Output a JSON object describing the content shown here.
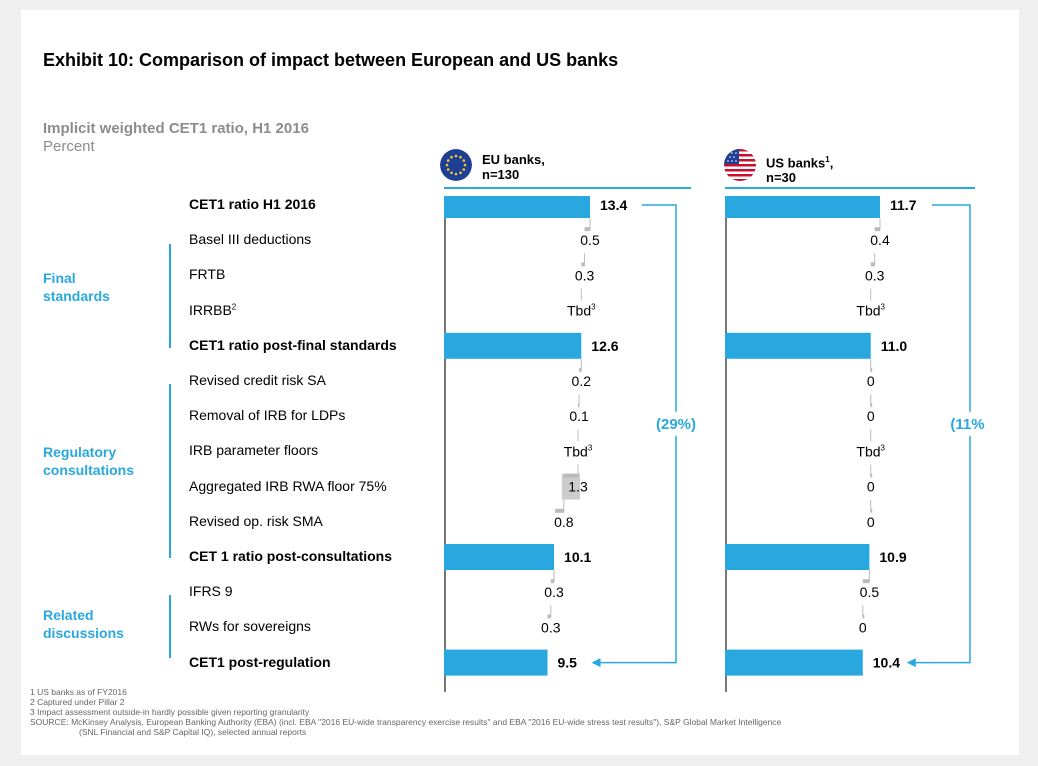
{
  "header": {
    "title": "Exhibit 10: Comparison of impact between European and US banks",
    "subtitle": "Implicit weighted CET1 ratio, H1 2016",
    "unit": "Percent"
  },
  "panels": [
    {
      "label_line1": "EU banks,",
      "label_line2": "n=130",
      "flag_icon": "eu-flag-icon",
      "change_label": "(29%)"
    },
    {
      "label_line1": "US banks",
      "label_sup": "1",
      "label_suffix": ",",
      "label_line2": "n=30",
      "flag_icon": "us-flag-icon",
      "change_label": "(11%)"
    }
  ],
  "rows": [
    {
      "label": "CET1 ratio H1 2016",
      "bold": true
    },
    {
      "label": "Basel III deductions",
      "bold": false
    },
    {
      "label": "FRTB",
      "bold": false
    },
    {
      "label": "IRRBB",
      "sup": "2",
      "bold": false
    },
    {
      "label": "CET1 ratio post-final standards",
      "bold": true
    },
    {
      "label": "Revised credit risk SA",
      "bold": false
    },
    {
      "label": "Removal of IRB for LDPs",
      "bold": false
    },
    {
      "label": "IRB parameter floors",
      "bold": false
    },
    {
      "label": "Aggregated IRB RWA floor 75%",
      "bold": false
    },
    {
      "label": "Revised op. risk SMA",
      "bold": false
    },
    {
      "label": "CET 1 ratio post-consultations",
      "bold": true
    },
    {
      "label": "IFRS 9",
      "bold": false
    },
    {
      "label": "RWs for sovereigns",
      "bold": false
    },
    {
      "label": "CET1 post-regulation",
      "bold": true
    }
  ],
  "groups": [
    {
      "label_line1": "Final",
      "label_line2": "standards"
    },
    {
      "label_line1": "Regulatory",
      "label_line2": "consultations"
    },
    {
      "label_line1": "Related",
      "label_line2": "discussions"
    }
  ],
  "footnotes": [
    "1 US banks as of FY2016",
    "2 Captured under Pillar 2",
    "3 Impact assessment outside-in hardly possible given reporting granularity",
    "SOURCE: McKinsey Analysis, European Banking Authority (EBA) (incl. EBA \"2016 EU-wide transparency exercise results\" and EBA \"2016 EU-wide stress test results\"), S&P Global Market Intelligence",
    "(SNL Financial and S&P Capital IQ), selected annual reports"
  ],
  "colors": {
    "bar": "#29a8e0",
    "highlight": "#cccccc",
    "connector": "#bbbbbb",
    "accent": "#29a8e0"
  },
  "chart_data": [
    {
      "type": "bar",
      "title": "EU banks, n=130",
      "categories": [
        "CET1 ratio H1 2016",
        "Basel III deductions",
        "FRTB",
        "IRRBB",
        "CET1 ratio post-final standards",
        "Revised credit risk SA",
        "Removal of IRB for LDPs",
        "IRB parameter floors",
        "Aggregated IRB RWA floor 75%",
        "Revised op. risk SMA",
        "CET 1 ratio post-consultations",
        "IFRS 9",
        "RWs for sovereigns",
        "CET1 post-regulation"
      ],
      "values": [
        13.4,
        0.5,
        0.3,
        null,
        12.6,
        0.2,
        0.1,
        null,
        1.3,
        0.8,
        10.1,
        0.3,
        0.3,
        9.5
      ],
      "labels": [
        "13.4",
        "0.5",
        "0.3",
        "Tbd",
        "12.6",
        "0.2",
        "0.1",
        "Tbd",
        "1.3",
        "0.8",
        "10.1",
        "0.3",
        "0.3",
        "9.5"
      ],
      "label_sups": [
        "",
        "",
        "",
        "3",
        "",
        "",
        "",
        "3",
        "",
        "",
        "",
        "",
        "",
        ""
      ],
      "totals": [
        true,
        false,
        false,
        false,
        true,
        false,
        false,
        false,
        false,
        false,
        true,
        false,
        false,
        true
      ],
      "highlighted": [
        false,
        false,
        false,
        false,
        false,
        false,
        false,
        false,
        true,
        false,
        false,
        false,
        false,
        false
      ],
      "xlim": [
        0,
        13.4
      ],
      "change": "(29%)"
    },
    {
      "type": "bar",
      "title": "US banks, n=30",
      "categories": [
        "CET1 ratio H1 2016",
        "Basel III deductions",
        "FRTB",
        "IRRBB",
        "CET1 ratio post-final standards",
        "Revised credit risk SA",
        "Removal of IRB for LDPs",
        "IRB parameter floors",
        "Aggregated IRB RWA floor 75%",
        "Revised op. risk SMA",
        "CET 1 ratio post-consultations",
        "IFRS 9",
        "RWs for sovereigns",
        "CET1 post-regulation"
      ],
      "values": [
        11.7,
        0.4,
        0.3,
        null,
        11.0,
        0,
        0,
        null,
        0,
        0,
        10.9,
        0.5,
        0,
        10.4
      ],
      "labels": [
        "11.7",
        "0.4",
        "0.3",
        "Tbd",
        "11.0",
        "0",
        "0",
        "Tbd",
        "0",
        "0",
        "10.9",
        "0.5",
        "0",
        "10.4"
      ],
      "label_sups": [
        "",
        "",
        "",
        "3",
        "",
        "",
        "",
        "3",
        "",
        "",
        "",
        "",
        "",
        ""
      ],
      "totals": [
        true,
        false,
        false,
        false,
        true,
        false,
        false,
        false,
        false,
        false,
        true,
        false,
        false,
        true
      ],
      "highlighted": [
        false,
        false,
        false,
        false,
        false,
        false,
        false,
        false,
        false,
        false,
        false,
        false,
        false,
        false
      ],
      "xlim": [
        0,
        11.7
      ],
      "change": "(11%)"
    }
  ]
}
